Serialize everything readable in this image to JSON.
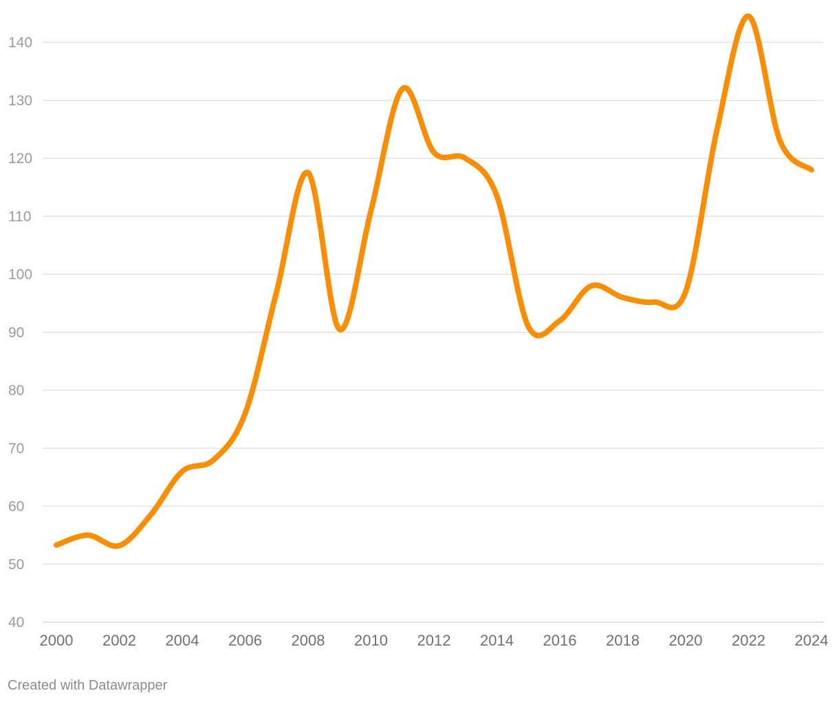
{
  "chart_data": {
    "type": "line",
    "title": "",
    "xlabel": "",
    "ylabel": "",
    "x": [
      2000,
      2001,
      2002,
      2003,
      2004,
      2005,
      2006,
      2007,
      2008,
      2009,
      2010,
      2011,
      2012,
      2013,
      2014,
      2015,
      2016,
      2017,
      2018,
      2019,
      2020,
      2021,
      2022,
      2023,
      2024
    ],
    "series": [
      {
        "values": [
          53.3,
          55,
          53.2,
          58.5,
          66,
          68,
          76,
          97,
          117.5,
          90.5,
          111,
          132,
          121,
          120,
          113.5,
          91,
          92,
          98,
          96,
          95.2,
          97,
          125,
          144.5,
          123,
          118
        ],
        "color": "#f78e05"
      }
    ],
    "xlim": [
      2000,
      2024
    ],
    "ylim": [
      40,
      145
    ],
    "y_ticks": [
      40,
      50,
      60,
      70,
      80,
      90,
      100,
      110,
      120,
      130,
      140
    ],
    "x_ticks": [
      2000,
      2002,
      2004,
      2006,
      2008,
      2010,
      2012,
      2014,
      2016,
      2018,
      2020,
      2022,
      2024
    ],
    "grid": true,
    "legend": "none",
    "curve": "smooth"
  },
  "footer": {
    "credit": "Created with Datawrapper"
  }
}
